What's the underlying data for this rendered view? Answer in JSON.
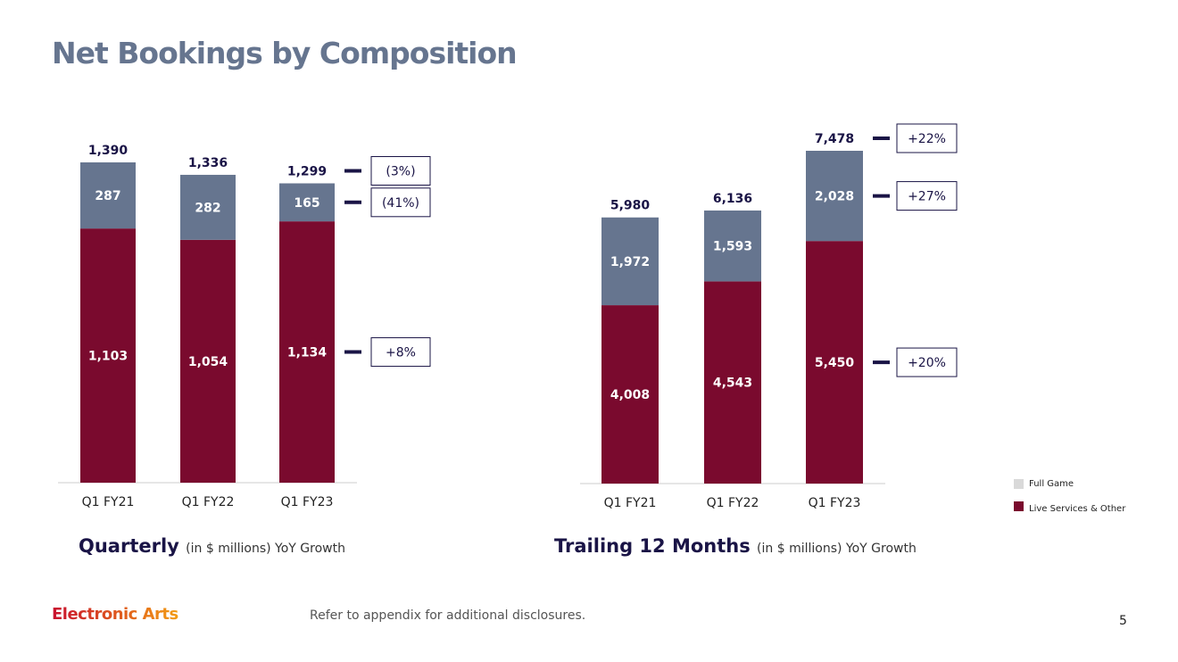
{
  "title": "Net Bookings by Composition",
  "colors": {
    "full_game": "#66758f",
    "live_services": "#7a0a2e",
    "legend_full_game": "#d9d9d9"
  },
  "legend": [
    "Full Game",
    "Live Services & Other"
  ],
  "chart_data": [
    {
      "type": "bar",
      "stacked": true,
      "title": "Quarterly",
      "title_note": "(in $ millions) YoY Growth",
      "categories": [
        "Q1 FY21",
        "Q1 FY22",
        "Q1 FY23"
      ],
      "series": [
        {
          "name": "Live Services & Other",
          "values": [
            1103,
            1054,
            1134
          ],
          "labels": [
            "1,103",
            "1,054",
            "1,134"
          ]
        },
        {
          "name": "Full Game",
          "values": [
            287,
            282,
            165
          ],
          "labels": [
            "287",
            "282",
            "165"
          ]
        }
      ],
      "totals": [
        1390,
        1336,
        1299
      ],
      "total_labels": [
        "1,390",
        "1,336",
        "1,299"
      ],
      "yoy": {
        "total": "(3%)",
        "full_game": "(41%)",
        "live_services": "+8%"
      }
    },
    {
      "type": "bar",
      "stacked": true,
      "title": "Trailing 12 Months",
      "title_note": "(in $ millions) YoY Growth",
      "categories": [
        "Q1 FY21",
        "Q1 FY22",
        "Q1 FY23"
      ],
      "series": [
        {
          "name": "Live Services & Other",
          "values": [
            4008,
            4543,
            5450
          ],
          "labels": [
            "4,008",
            "4,543",
            "5,450"
          ]
        },
        {
          "name": "Full Game",
          "values": [
            1972,
            1593,
            2028
          ],
          "labels": [
            "1,972",
            "1,593",
            "2,028"
          ]
        }
      ],
      "totals": [
        5980,
        6136,
        7478
      ],
      "total_labels": [
        "5,980",
        "6,136",
        "7,478"
      ],
      "yoy": {
        "total": "+22%",
        "full_game": "+27%",
        "live_services": "+20%"
      }
    }
  ],
  "footer": {
    "logo": "Electronic Arts",
    "disclosure": "Refer to appendix for additional disclosures.",
    "page": "5"
  }
}
